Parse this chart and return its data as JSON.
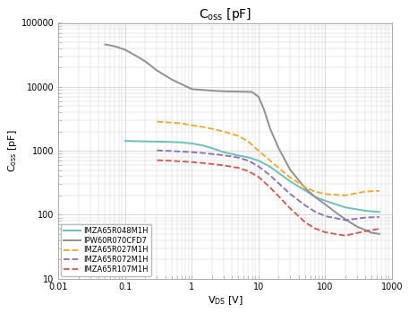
{
  "title_main": "C",
  "title_sub": "oss",
  "title_suffix": " [pF]",
  "xlabel_main": "V",
  "xlabel_sub": "DS",
  "xlabel_suffix": " [V]",
  "ylabel_main": "C",
  "ylabel_sub": "oss",
  "ylabel_suffix": " [pF]",
  "xlim": [
    0.01,
    1000
  ],
  "ylim": [
    10,
    100000
  ],
  "background_color": "#ffffff",
  "grid_color": "#cccccc",
  "tick_fontsize": 7,
  "label_fontsize": 8,
  "title_fontsize": 10,
  "legend_fontsize": 6,
  "series": [
    {
      "label": "IMZA65R048M1H",
      "color": "#6dbfb8",
      "linestyle": "solid",
      "linewidth": 1.4,
      "x": [
        0.1,
        0.2,
        0.4,
        0.7,
        1.0,
        1.5,
        2.0,
        3.0,
        5.0,
        7.0,
        10.0,
        15.0,
        20.0,
        30.0,
        50.0,
        70.0,
        100.0,
        200.0,
        400.0,
        650.0
      ],
      "y": [
        1420,
        1400,
        1380,
        1350,
        1300,
        1200,
        1100,
        950,
        840,
        790,
        700,
        560,
        450,
        330,
        240,
        190,
        165,
        130,
        115,
        110
      ]
    },
    {
      "label": "IPW60R070CFD7",
      "color": "#909090",
      "linestyle": "solid",
      "linewidth": 1.4,
      "x": [
        0.05,
        0.07,
        0.1,
        0.15,
        0.2,
        0.3,
        0.5,
        0.7,
        1.0,
        2.0,
        3.0,
        5.0,
        7.0,
        8.0,
        10.0,
        12.0,
        15.0,
        20.0,
        30.0,
        50.0,
        70.0,
        100.0,
        150.0,
        200.0,
        300.0,
        500.0,
        650.0
      ],
      "y": [
        46000,
        43000,
        38000,
        30000,
        25000,
        18000,
        13000,
        11000,
        9200,
        8700,
        8500,
        8400,
        8350,
        8300,
        7000,
        4500,
        2200,
        1100,
        500,
        260,
        190,
        145,
        105,
        85,
        65,
        52,
        50
      ]
    },
    {
      "label": "IMZA65R027M1H",
      "color": "#f5a623",
      "linestyle": "dashed",
      "linewidth": 1.3,
      "x": [
        0.3,
        0.5,
        0.7,
        1.0,
        1.5,
        2.0,
        3.0,
        5.0,
        7.0,
        10.0,
        15.0,
        20.0,
        30.0,
        50.0,
        70.0,
        100.0,
        200.0,
        400.0,
        650.0
      ],
      "y": [
        2850,
        2750,
        2680,
        2500,
        2350,
        2200,
        2000,
        1700,
        1400,
        1000,
        700,
        540,
        380,
        270,
        230,
        210,
        200,
        230,
        235
      ]
    },
    {
      "label": "IMZA65R072M1H",
      "color": "#8a6bbf",
      "linestyle": "dashed",
      "linewidth": 1.3,
      "x": [
        0.3,
        0.5,
        0.7,
        1.0,
        1.5,
        2.0,
        3.0,
        5.0,
        7.0,
        10.0,
        15.0,
        20.0,
        30.0,
        50.0,
        70.0,
        100.0,
        200.0,
        400.0,
        650.0
      ],
      "y": [
        1010,
        990,
        970,
        950,
        920,
        890,
        850,
        780,
        700,
        570,
        410,
        310,
        210,
        140,
        112,
        95,
        82,
        90,
        92
      ]
    },
    {
      "label": "IMZA65R107M1H",
      "color": "#d9534f",
      "linestyle": "dashed",
      "linewidth": 1.3,
      "x": [
        0.3,
        0.5,
        0.7,
        1.0,
        1.5,
        2.0,
        3.0,
        5.0,
        7.0,
        10.0,
        15.0,
        20.0,
        30.0,
        50.0,
        70.0,
        100.0,
        200.0,
        400.0,
        650.0
      ],
      "y": [
        710,
        695,
        680,
        665,
        640,
        620,
        590,
        540,
        480,
        390,
        265,
        195,
        125,
        76,
        61,
        53,
        47,
        55,
        60
      ]
    }
  ]
}
